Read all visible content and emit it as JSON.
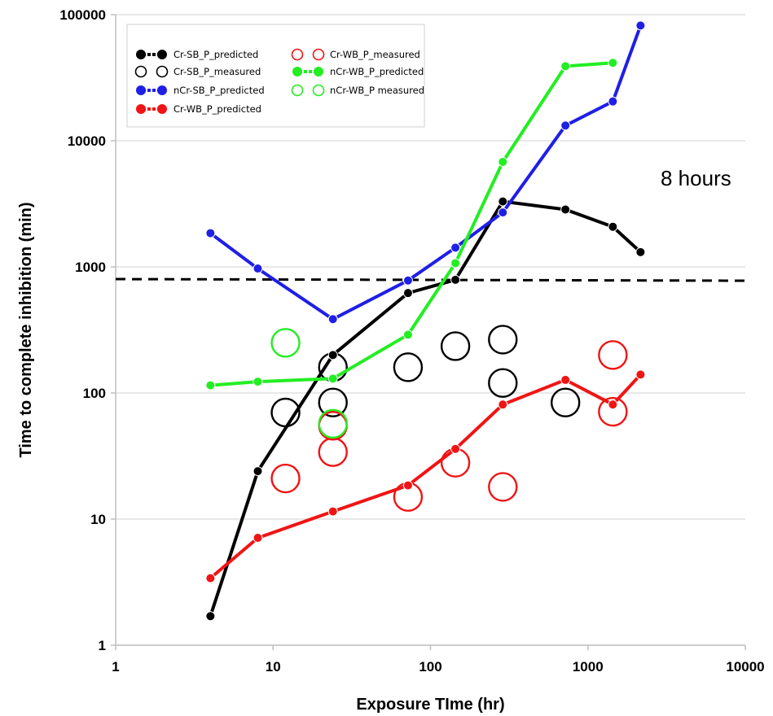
{
  "chart_data": {
    "type": "line",
    "xscale": "log",
    "yscale": "log",
    "xlim": [
      1,
      10000
    ],
    "ylim": [
      1,
      100000
    ],
    "xlabel": "Exposure TIme (hr)",
    "ylabel": "Time to complete inhibition (min)",
    "x_ticks": [
      "1",
      "10",
      "100",
      "1000",
      "10000"
    ],
    "y_ticks": [
      "1",
      "10",
      "100",
      "1000",
      "10000",
      "100000"
    ],
    "grid": "horizontal",
    "legend_position": "top-left",
    "annotation": "8 hours",
    "reference_line": {
      "y": 800,
      "style": "dashed"
    },
    "series": [
      {
        "name": "Cr-SB_P_predicted",
        "kind": "line",
        "color": "#000000",
        "points": [
          [
            4,
            1.7
          ],
          [
            8,
            24
          ],
          [
            24,
            200
          ],
          [
            72,
            620
          ],
          [
            144,
            790
          ],
          [
            288,
            3300
          ],
          [
            720,
            2850
          ],
          [
            1440,
            2080
          ],
          [
            2160,
            1310
          ]
        ]
      },
      {
        "name": "Cr-SB_P_measured",
        "kind": "marker",
        "color": "#000000",
        "points": [
          [
            12,
            70
          ],
          [
            24,
            160
          ],
          [
            24,
            84
          ],
          [
            72,
            160
          ],
          [
            144,
            235
          ],
          [
            288,
            265
          ],
          [
            288,
            120
          ],
          [
            720,
            84
          ]
        ]
      },
      {
        "name": "nCr-SB_P_predicted",
        "kind": "line",
        "color": "#1f1fe6",
        "points": [
          [
            4,
            1850
          ],
          [
            8,
            970
          ],
          [
            24,
            385
          ],
          [
            72,
            780
          ],
          [
            144,
            1420
          ],
          [
            288,
            2700
          ],
          [
            720,
            13200
          ],
          [
            1440,
            20500
          ],
          [
            2160,
            82000
          ]
        ]
      },
      {
        "name": "Cr-WB_P_predicted",
        "kind": "line",
        "color": "#f01414",
        "points": [
          [
            4,
            3.4
          ],
          [
            8,
            7.1
          ],
          [
            24,
            11.5
          ],
          [
            72,
            18.5
          ],
          [
            144,
            36
          ],
          [
            288,
            81
          ],
          [
            720,
            127
          ],
          [
            1440,
            81
          ],
          [
            2160,
            140
          ]
        ]
      },
      {
        "name": "Cr-WB_P_measured",
        "kind": "marker",
        "color": "#f01414",
        "points": [
          [
            12,
            21
          ],
          [
            24,
            55
          ],
          [
            24,
            34
          ],
          [
            72,
            15
          ],
          [
            144,
            28
          ],
          [
            288,
            18
          ],
          [
            1440,
            200
          ],
          [
            1440,
            71
          ]
        ]
      },
      {
        "name": "nCr-WB_P_predicted",
        "kind": "line",
        "color": "#22ee22",
        "points": [
          [
            4,
            115
          ],
          [
            8,
            123
          ],
          [
            24,
            130
          ],
          [
            72,
            290
          ],
          [
            144,
            1070
          ],
          [
            288,
            6800
          ],
          [
            720,
            39000
          ],
          [
            1440,
            41500
          ]
        ]
      },
      {
        "name": "nCr-WB_P measured",
        "kind": "marker",
        "color": "#22ee22",
        "points": [
          [
            12,
            250
          ],
          [
            24,
            57
          ]
        ]
      }
    ]
  }
}
